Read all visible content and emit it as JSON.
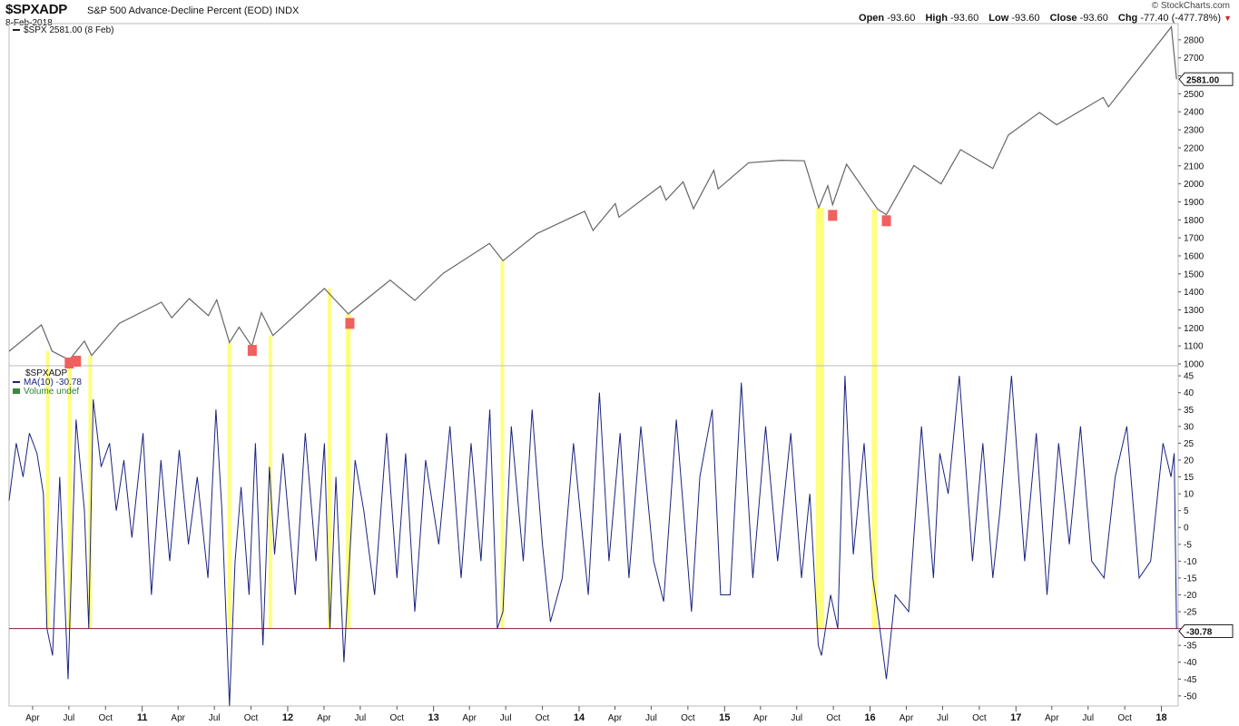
{
  "header": {
    "symbol": "$SPXADP",
    "description": "S&P 500 Advance-Decline Percent (EOD)",
    "exchange": "INDX",
    "date": "8-Feb-2018",
    "brand": "© StockCharts.com",
    "ohlc": [
      {
        "label": "Open",
        "value": "-93.60"
      },
      {
        "label": "High",
        "value": "-93.60"
      },
      {
        "label": "Low",
        "value": "-93.60"
      },
      {
        "label": "Close",
        "value": "-93.60"
      },
      {
        "label": "Chg",
        "value": "-77.40 (-477.78%)"
      }
    ],
    "down_arrow_color": "#d0202a"
  },
  "chart_data": [
    {
      "type": "line",
      "panel": "price",
      "legend": "$SPX 2581.00 (8 Feb)",
      "last_value_label": "2581.00",
      "y_ticks": [
        "1000",
        "1100",
        "1200",
        "1300",
        "1400",
        "1500",
        "1600",
        "1700",
        "1800",
        "1900",
        "2000",
        "2100",
        "2200",
        "2300",
        "2400",
        "2500",
        "2600",
        "2700",
        "2800"
      ],
      "ylim": [
        990,
        2890
      ],
      "line_color": "#666666",
      "series": [
        {
          "name": "$SPX",
          "x": [
            "2010-02-01",
            "2010-04-23",
            "2010-05-20",
            "2010-07-02",
            "2010-08-09",
            "2010-08-27",
            "2010-11-05",
            "2011-02-18",
            "2011-03-16",
            "2011-04-29",
            "2011-06-16",
            "2011-07-07",
            "2011-08-08",
            "2011-09-01",
            "2011-10-03",
            "2011-10-27",
            "2011-11-25",
            "2012-04-02",
            "2012-06-01",
            "2012-09-14",
            "2012-11-15",
            "2013-01-25",
            "2013-05-21",
            "2013-06-24",
            "2013-09-18",
            "2014-01-15",
            "2014-02-05",
            "2014-04-02",
            "2014-04-11",
            "2014-07-24",
            "2014-08-07",
            "2014-09-19",
            "2014-10-15",
            "2014-12-05",
            "2014-12-16",
            "2015-03-02",
            "2015-05-21",
            "2015-07-20",
            "2015-08-25",
            "2015-09-17",
            "2015-09-29",
            "2015-11-03",
            "2016-01-20",
            "2016-02-11",
            "2016-04-20",
            "2016-06-27",
            "2016-08-15",
            "2016-11-04",
            "2016-12-13",
            "2017-03-01",
            "2017-04-13",
            "2017-08-08",
            "2017-08-21",
            "2018-01-26",
            "2018-02-05",
            "2018-02-08"
          ],
          "values": [
            1070,
            1217,
            1071,
            1022,
            1127,
            1047,
            1226,
            1343,
            1256,
            1363,
            1268,
            1356,
            1119,
            1204,
            1099,
            1285,
            1158,
            1419,
            1278,
            1466,
            1353,
            1503,
            1669,
            1573,
            1725,
            1848,
            1741,
            1890,
            1815,
            1988,
            1910,
            2011,
            1862,
            2075,
            1972,
            2117,
            2131,
            2128,
            1867,
            1990,
            1884,
            2109,
            1859,
            1829,
            2102,
            2000,
            2190,
            2085,
            2271,
            2396,
            2328,
            2480,
            2428,
            2872,
            2648,
            2581
          ]
        }
      ],
      "markers": {
        "color": "#f0605e",
        "x": [
          "2010-07-20",
          "2010-07-02",
          "2011-10-04",
          "2012-06-05",
          "2015-09-29",
          "2016-02-11"
        ],
        "values": [
          1015,
          1005,
          1075,
          1225,
          1825,
          1795
        ]
      }
    },
    {
      "type": "line",
      "panel": "indicator",
      "legend": [
        "$SPXADP",
        "MA(10) -30.78",
        "Volume undef"
      ],
      "last_value_label": "-30.78",
      "y_ticks": [
        "-50",
        "-45",
        "-40",
        "-35",
        "-30",
        "-25",
        "-20",
        "-15",
        "-10",
        "-5",
        "0",
        "5",
        "10",
        "15",
        "20",
        "25",
        "30",
        "35",
        "40",
        "45"
      ],
      "ylim": [
        -53,
        48
      ],
      "line_color": "#1a237e",
      "threshold": {
        "value": -30,
        "color": "#8b1a3a"
      },
      "series": [
        {
          "name": "MA(10)",
          "x": [
            "2010-02-01",
            "2010-02-19",
            "2010-03-08",
            "2010-03-24",
            "2010-04-12",
            "2010-04-28",
            "2010-05-07",
            "2010-05-21",
            "2010-06-08",
            "2010-06-29",
            "2010-07-19",
            "2010-08-09",
            "2010-08-20",
            "2010-08-31",
            "2010-09-20",
            "2010-10-11",
            "2010-10-28",
            "2010-11-16",
            "2010-12-06",
            "2011-01-03",
            "2011-01-24",
            "2011-02-17",
            "2011-03-11",
            "2011-04-04",
            "2011-04-27",
            "2011-05-19",
            "2011-06-15",
            "2011-07-05",
            "2011-07-20",
            "2011-08-08",
            "2011-08-22",
            "2011-09-06",
            "2011-09-26",
            "2011-10-12",
            "2011-10-31",
            "2011-11-16",
            "2011-11-29",
            "2011-12-20",
            "2012-01-20",
            "2012-02-14",
            "2012-03-12",
            "2012-04-02",
            "2012-04-16",
            "2012-05-01",
            "2012-05-21",
            "2012-06-04",
            "2012-06-18",
            "2012-07-10",
            "2012-08-06",
            "2012-09-05",
            "2012-10-01",
            "2012-10-23",
            "2012-11-15",
            "2012-12-12",
            "2013-01-14",
            "2013-02-11",
            "2013-03-11",
            "2013-04-05",
            "2013-04-30",
            "2013-05-22",
            "2013-06-10",
            "2013-06-24",
            "2013-07-15",
            "2013-08-14",
            "2013-09-05",
            "2013-10-01",
            "2013-10-21",
            "2013-11-20",
            "2013-12-18",
            "2014-01-24",
            "2014-02-21",
            "2014-03-17",
            "2014-04-14",
            "2014-05-06",
            "2014-06-05",
            "2014-07-07",
            "2014-08-01",
            "2014-09-02",
            "2014-10-10",
            "2014-10-31",
            "2014-12-01",
            "2014-12-22",
            "2015-01-15",
            "2015-02-12",
            "2015-03-13",
            "2015-04-14",
            "2015-05-14",
            "2015-06-16",
            "2015-07-13",
            "2015-08-03",
            "2015-08-24",
            "2015-09-01",
            "2015-09-24",
            "2015-10-12",
            "2015-10-30",
            "2015-11-20",
            "2015-12-17",
            "2016-01-08",
            "2016-01-20",
            "2016-02-11",
            "2016-03-04",
            "2016-04-07",
            "2016-05-09",
            "2016-06-08",
            "2016-06-24",
            "2016-07-15",
            "2016-08-12",
            "2016-09-14",
            "2016-10-10",
            "2016-11-04",
            "2016-11-22",
            "2016-12-21",
            "2017-01-23",
            "2017-02-21",
            "2017-03-20",
            "2017-04-18",
            "2017-05-15",
            "2017-06-12",
            "2017-07-10",
            "2017-08-10",
            "2017-09-07",
            "2017-10-06",
            "2017-11-06",
            "2017-12-05",
            "2018-01-05",
            "2018-01-25",
            "2018-02-02",
            "2018-02-08"
          ],
          "values": [
            8,
            25,
            15,
            28,
            22,
            10,
            -30,
            -38,
            15,
            -45,
            32,
            5,
            -30,
            38,
            18,
            25,
            5,
            20,
            -3,
            28,
            -20,
            20,
            -10,
            23,
            -5,
            15,
            -15,
            35,
            5,
            -53,
            -10,
            12,
            -20,
            25,
            -35,
            18,
            -8,
            22,
            -20,
            28,
            -10,
            25,
            -30,
            15,
            -40,
            -10,
            20,
            5,
            -20,
            28,
            -15,
            22,
            -25,
            20,
            -5,
            30,
            -15,
            25,
            -10,
            35,
            -30,
            -25,
            30,
            -10,
            35,
            -5,
            -28,
            -15,
            25,
            -20,
            40,
            -10,
            28,
            -15,
            30,
            -10,
            -22,
            32,
            -25,
            15,
            35,
            -20,
            -20,
            43,
            -15,
            30,
            -10,
            28,
            -15,
            10,
            -35,
            -38,
            -20,
            -30,
            45,
            -8,
            25,
            -15,
            -25,
            -45,
            -20,
            -25,
            30,
            -15,
            22,
            10,
            45,
            -10,
            25,
            -15,
            5,
            45,
            -10,
            28,
            -20,
            25,
            -5,
            30,
            -10,
            -15,
            15,
            30,
            -15,
            -10,
            25,
            15,
            22,
            -30
          ]
        }
      ]
    }
  ],
  "highlights": {
    "color": "#ffff66",
    "bands": [
      {
        "from": "2010-05-04",
        "to": "2010-05-10"
      },
      {
        "from": "2010-06-28",
        "to": "2010-07-08"
      },
      {
        "from": "2010-08-19",
        "to": "2010-08-27"
      },
      {
        "from": "2011-08-03",
        "to": "2011-08-11"
      },
      {
        "from": "2011-11-14",
        "to": "2011-11-22"
      },
      {
        "from": "2012-04-10",
        "to": "2012-04-16"
      },
      {
        "from": "2012-05-26",
        "to": "2012-06-07"
      },
      {
        "from": "2013-06-18",
        "to": "2013-06-26"
      },
      {
        "from": "2015-08-18",
        "to": "2015-09-08"
      },
      {
        "from": "2016-01-05",
        "to": "2016-01-18"
      }
    ]
  },
  "x_axis": {
    "ticks": [
      {
        "date": "2010-04-01",
        "label": "Apr"
      },
      {
        "date": "2010-07-01",
        "label": "Jul"
      },
      {
        "date": "2010-10-01",
        "label": "Oct"
      },
      {
        "date": "2011-01-01",
        "label": "11",
        "major": true
      },
      {
        "date": "2011-04-01",
        "label": "Apr"
      },
      {
        "date": "2011-07-01",
        "label": "Jul"
      },
      {
        "date": "2011-10-01",
        "label": "Oct"
      },
      {
        "date": "2012-01-01",
        "label": "12",
        "major": true
      },
      {
        "date": "2012-04-01",
        "label": "Apr"
      },
      {
        "date": "2012-07-01",
        "label": "Jul"
      },
      {
        "date": "2012-10-01",
        "label": "Oct"
      },
      {
        "date": "2013-01-01",
        "label": "13",
        "major": true
      },
      {
        "date": "2013-04-01",
        "label": "Apr"
      },
      {
        "date": "2013-07-01",
        "label": "Jul"
      },
      {
        "date": "2013-10-01",
        "label": "Oct"
      },
      {
        "date": "2014-01-01",
        "label": "14",
        "major": true
      },
      {
        "date": "2014-04-01",
        "label": "Apr"
      },
      {
        "date": "2014-07-01",
        "label": "Jul"
      },
      {
        "date": "2014-10-01",
        "label": "Oct"
      },
      {
        "date": "2015-01-01",
        "label": "15",
        "major": true
      },
      {
        "date": "2015-04-01",
        "label": "Apr"
      },
      {
        "date": "2015-07-01",
        "label": "Jul"
      },
      {
        "date": "2015-10-01",
        "label": "Oct"
      },
      {
        "date": "2016-01-01",
        "label": "16",
        "major": true
      },
      {
        "date": "2016-04-01",
        "label": "Apr"
      },
      {
        "date": "2016-07-01",
        "label": "Jul"
      },
      {
        "date": "2016-10-01",
        "label": "Oct"
      },
      {
        "date": "2017-01-01",
        "label": "17",
        "major": true
      },
      {
        "date": "2017-04-01",
        "label": "Apr"
      },
      {
        "date": "2017-07-01",
        "label": "Jul"
      },
      {
        "date": "2017-10-01",
        "label": "Oct"
      },
      {
        "date": "2018-01-01",
        "label": "18",
        "major": true
      }
    ],
    "range": [
      "2010-02-01",
      "2018-02-12"
    ]
  }
}
